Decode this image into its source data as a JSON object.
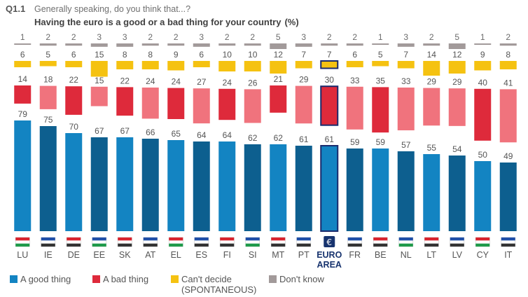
{
  "header": {
    "question_id": "Q1.1",
    "subtitle": "Generally speaking, do you think that...?",
    "title": "Having the euro is a good or a bad thing for your country",
    "unit": "(%)"
  },
  "colors": {
    "good": "#1384c2",
    "good_alt": "#0d5f8f",
    "bad": "#de2a3b",
    "bad_light": "#f0737d",
    "cant_decide": "#f5c211",
    "dont_know": "#a29a9a",
    "highlight_border": "#1a2a6c"
  },
  "legend": [
    {
      "key": "good",
      "label": "A good thing",
      "color": "#1384c2"
    },
    {
      "key": "bad",
      "label": "A bad thing",
      "color": "#de2a3b"
    },
    {
      "key": "cant_decide",
      "label": "Can't decide",
      "label2": "(SPONTANEOUS)",
      "color": "#f5c211"
    },
    {
      "key": "dont_know",
      "label": "Don't know",
      "color": "#a29a9a"
    }
  ],
  "chart_data": {
    "type": "bar",
    "title": "Having the euro is a good or a bad thing for your country (%)",
    "categories": [
      "LU",
      "IE",
      "DE",
      "EE",
      "SK",
      "AT",
      "EL",
      "ES",
      "FI",
      "SI",
      "MT",
      "PT",
      "EURO AREA",
      "FR",
      "BE",
      "NL",
      "LT",
      "LV",
      "CY",
      "IT"
    ],
    "highlight": "EURO AREA",
    "series": [
      {
        "name": "A good thing",
        "values": [
          79,
          75,
          70,
          67,
          67,
          66,
          65,
          64,
          64,
          62,
          62,
          61,
          61,
          59,
          59,
          57,
          55,
          54,
          50,
          49
        ]
      },
      {
        "name": "A bad thing",
        "values": [
          14,
          18,
          22,
          15,
          22,
          24,
          24,
          27,
          24,
          26,
          21,
          29,
          30,
          33,
          35,
          33,
          29,
          29,
          40,
          41
        ]
      },
      {
        "name": "Can't decide (SPONTANEOUS)",
        "values": [
          6,
          5,
          6,
          15,
          8,
          8,
          9,
          6,
          10,
          10,
          12,
          7,
          7,
          6,
          5,
          7,
          14,
          12,
          9,
          8
        ]
      },
      {
        "name": "Don't know",
        "values": [
          1,
          2,
          2,
          3,
          3,
          2,
          2,
          3,
          2,
          2,
          5,
          3,
          2,
          2,
          1,
          3,
          2,
          5,
          1,
          2
        ]
      }
    ]
  }
}
